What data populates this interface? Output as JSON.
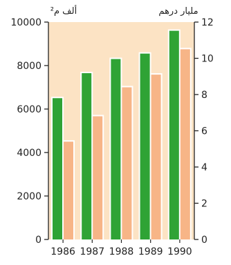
{
  "chart_data": {
    "type": "bar",
    "categories": [
      "1986",
      "1987",
      "1988",
      "1989",
      "1990"
    ],
    "left_axis": {
      "unit_label": "ألف م²",
      "ylim": [
        0,
        10000
      ],
      "ticks": [
        "0",
        "2000",
        "4000",
        "6000",
        "8000",
        "10000"
      ]
    },
    "right_axis": {
      "unit_label": "مليار درهم",
      "ylim": [
        0,
        12
      ],
      "ticks": [
        "0",
        "2",
        "4",
        "6",
        "8",
        "10",
        "12"
      ]
    },
    "series": [
      {
        "axis": "left",
        "values": [
          6500,
          7650,
          8300,
          8550,
          9600
        ]
      },
      {
        "axis": "right",
        "values": [
          5.4,
          6.8,
          8.4,
          9.1,
          10.5
        ]
      }
    ],
    "grid": false,
    "colors": {
      "plot_background": "#fce3c4",
      "series_left": "#2fa335",
      "series_right": "#f7b587",
      "axis": "#222222"
    }
  }
}
